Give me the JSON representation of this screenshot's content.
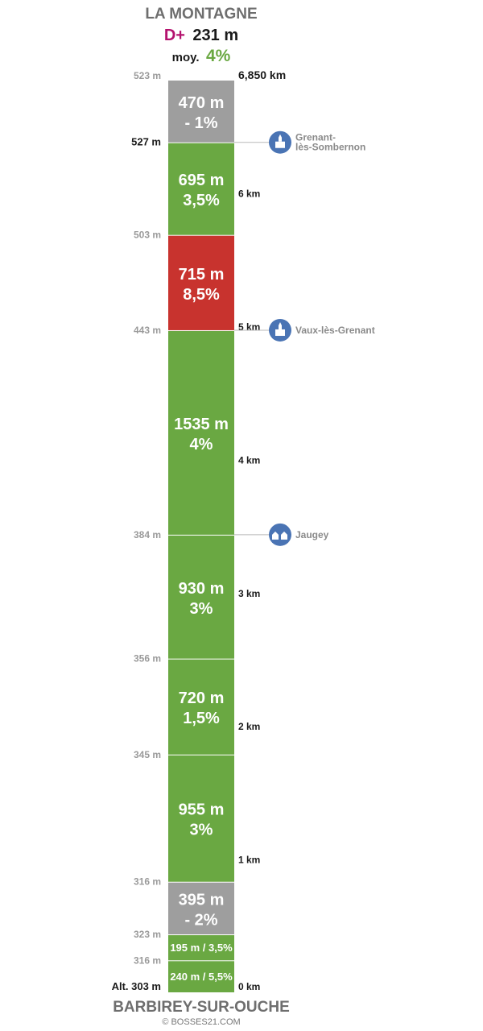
{
  "header": {
    "title": "LA MONTAGNE",
    "gain_prefix": "D+",
    "gain_value": "231 m",
    "avg_prefix": "moy.",
    "avg_value": "4%"
  },
  "footer": {
    "start_altitude": "Alt. 303 m",
    "start_name": "BARBIREY-SUR-OUCHE",
    "copyright": "© BOSSES21.COM"
  },
  "colors": {
    "climb": "#6aa842",
    "steep": "#c8332e",
    "descent": "#9e9e9e",
    "poi": "#4a74b4",
    "gain": "#b4126e"
  },
  "chart_data": {
    "type": "segment-profile",
    "total_distance_km": 6.85,
    "start_altitude_m": 303,
    "total_gain_m": 231,
    "average_gradient_pct": 4,
    "segments": [
      {
        "length_m": 240,
        "label": "240 m / 5,5%",
        "gradient_pct": 5.5,
        "type": "climb",
        "end_altitude_label": "316 m"
      },
      {
        "length_m": 195,
        "label": "195 m / 3,5%",
        "gradient_pct": 3.5,
        "type": "climb",
        "end_altitude_label": "323 m"
      },
      {
        "length_m": 395,
        "label_length": "395 m",
        "label_grade": "- 2%",
        "gradient_pct": -2,
        "type": "descent",
        "end_altitude_label": "316 m"
      },
      {
        "length_m": 955,
        "label_length": "955 m",
        "label_grade": "3%",
        "gradient_pct": 3,
        "type": "climb",
        "end_altitude_label": "345 m"
      },
      {
        "length_m": 720,
        "label_length": "720 m",
        "label_grade": "1,5%",
        "gradient_pct": 1.5,
        "type": "climb",
        "end_altitude_label": "356 m"
      },
      {
        "length_m": 930,
        "label_length": "930 m",
        "label_grade": "3%",
        "gradient_pct": 3,
        "type": "climb",
        "end_altitude_label": "384 m"
      },
      {
        "length_m": 1535,
        "label_length": "1535 m",
        "label_grade": "4%",
        "gradient_pct": 4,
        "type": "climb",
        "end_altitude_label": "443 m"
      },
      {
        "length_m": 715,
        "label_length": "715 m",
        "label_grade": "8,5%",
        "gradient_pct": 8.5,
        "type": "steep",
        "end_altitude_label": "503 m"
      },
      {
        "length_m": 695,
        "label_length": "695 m",
        "label_grade": "3,5%",
        "gradient_pct": 3.5,
        "type": "climb",
        "end_altitude_label": "527 m"
      },
      {
        "length_m": 470,
        "label_length": "470 m",
        "label_grade": "- 1%",
        "gradient_pct": -1,
        "type": "descent",
        "end_altitude_label": "523 m"
      }
    ],
    "km_markers": [
      {
        "km": 0,
        "label": "0 km"
      },
      {
        "km": 1,
        "label": "1 km"
      },
      {
        "km": 2,
        "label": "2 km"
      },
      {
        "km": 3,
        "label": "3 km"
      },
      {
        "km": 4,
        "label": "4 km"
      },
      {
        "km": 5,
        "label": "5 km"
      },
      {
        "km": 6,
        "label": "6 km"
      },
      {
        "km": 6.85,
        "label": "6,850 km"
      }
    ],
    "places": [
      {
        "name_lines": [
          "Jaugey"
        ],
        "after_segment": 5,
        "icon": "house-icon"
      },
      {
        "name_lines": [
          "Vaux-lès-Grenant"
        ],
        "after_segment": 6,
        "icon": "church-icon"
      },
      {
        "name_lines": [
          "Grenant-",
          "lès-Sombernon"
        ],
        "after_segment": 8,
        "icon": "church-icon"
      }
    ]
  }
}
